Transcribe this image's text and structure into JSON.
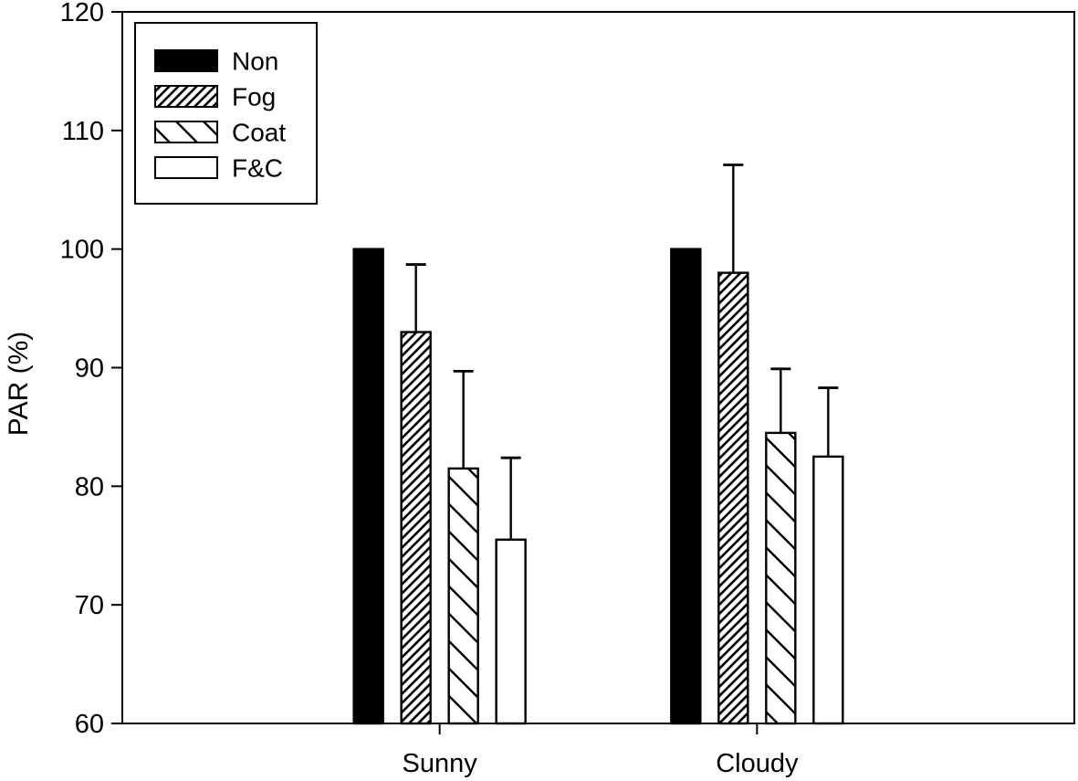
{
  "figure": {
    "background_color": "#ffffff",
    "foreground_color": "#000000"
  },
  "chart_data": {
    "type": "bar",
    "title": "",
    "xlabel": "",
    "ylabel": "PAR (%)",
    "ylim": [
      60,
      120
    ],
    "yticks": [
      60,
      70,
      80,
      90,
      100,
      110,
      120
    ],
    "categories": [
      "Sunny",
      "Cloudy"
    ],
    "series": [
      {
        "name": "Non",
        "fill": "solid-black",
        "values": [
          100,
          100
        ],
        "errors_up": [
          0,
          0
        ]
      },
      {
        "name": "Fog",
        "fill": "hatch-forward",
        "values": [
          93,
          98
        ],
        "errors_up": [
          5.7,
          9.1
        ]
      },
      {
        "name": "Coat",
        "fill": "hatch-backward",
        "values": [
          81.5,
          84.5
        ],
        "errors_up": [
          8.2,
          5.4
        ]
      },
      {
        "name": "F&C",
        "fill": "white",
        "values": [
          75.5,
          82.5
        ],
        "errors_up": [
          6.9,
          5.8
        ]
      }
    ],
    "legend": {
      "position": "upper-left",
      "entries": [
        "Non",
        "Fog",
        "Coat",
        "F&C"
      ]
    },
    "grid": false,
    "error_bars": "upper-only",
    "bar_outline_color": "#000000",
    "bar_fill_colors": {
      "solid-black": "#000000",
      "white": "#ffffff"
    }
  }
}
